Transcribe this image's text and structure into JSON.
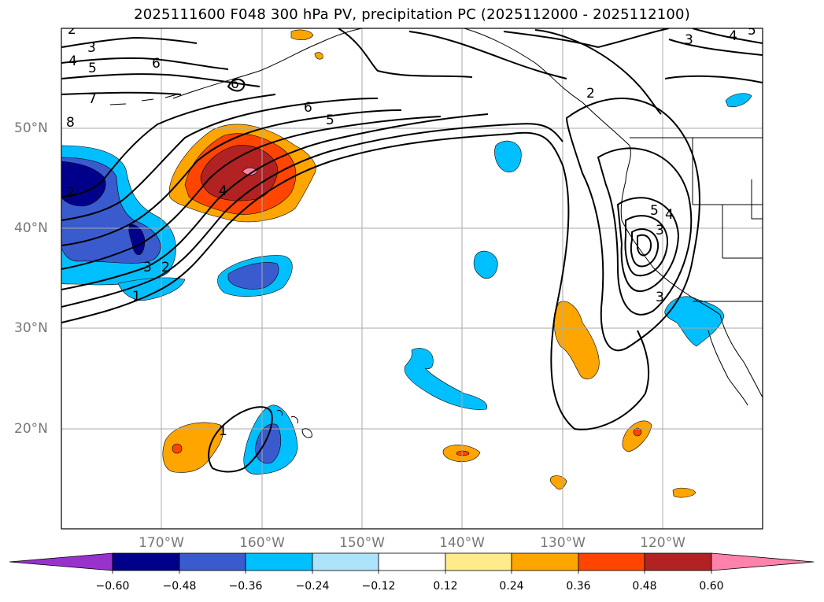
{
  "title": "2025111600 F048 300 hPa PV, precipitation PC (2025112000 - 2025112100)",
  "map": {
    "lat_labels": [
      "50°N",
      "40°N",
      "30°N",
      "20°N"
    ],
    "lon_labels": [
      "170°W",
      "160°W",
      "150°W",
      "140°W",
      "130°W",
      "120°W"
    ],
    "grid": true,
    "extent": {
      "lon_min": -180,
      "lon_max": -110,
      "lat_min": 10,
      "lat_max": 60
    }
  },
  "contour_labels": [
    "2",
    "3",
    "4",
    "5",
    "6",
    "7",
    "8",
    "6",
    "5",
    "4",
    "3",
    "2",
    "1",
    "2",
    "3",
    "4",
    "5",
    "6",
    "3",
    "5",
    "4",
    "3",
    "2",
    "1"
  ],
  "colorbar": {
    "ticks": [
      "−0.60",
      "−0.48",
      "−0.36",
      "−0.24",
      "−0.12",
      "0.12",
      "0.24",
      "0.36",
      "0.48",
      "0.60"
    ],
    "colors": [
      "#9932CC",
      "#00008B",
      "#3A5BCE",
      "#00BFFF",
      "#ADE3FA",
      "#FFFFFF",
      "#FFEB8A",
      "#FFA500",
      "#FF4500",
      "#B22222",
      "#FF82AB"
    ]
  },
  "fill_colors": {
    "dark_blue": "#00008B",
    "blue": "#3A5BCE",
    "light_blue": "#00BFFF",
    "orange": "#FFA500",
    "red_orange": "#FF4500",
    "dark_red": "#B22222",
    "pink": "#FF82AB"
  }
}
